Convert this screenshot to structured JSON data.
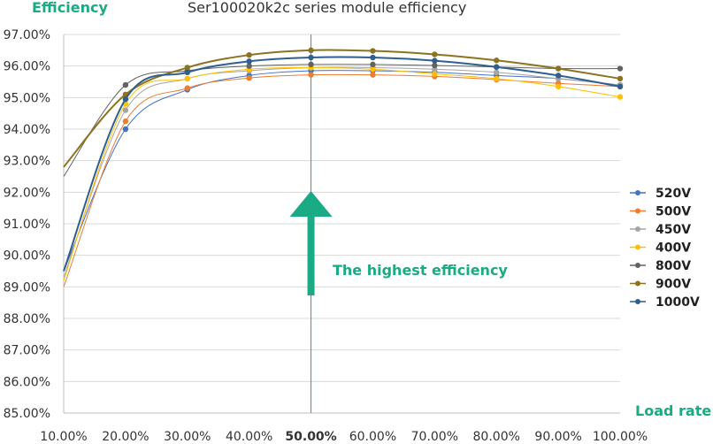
{
  "chart_data": {
    "type": "line",
    "title": "Ser100020k2c series module efficiency",
    "ylabel": "Efficiency",
    "xlabel": "Load rate",
    "x": [
      10,
      20,
      30,
      40,
      50,
      60,
      70,
      80,
      90,
      100
    ],
    "x_tick_labels": [
      "10.00%",
      "20.00%",
      "30.00%",
      "40.00%",
      "50.00%",
      "60.00%",
      "70.00%",
      "80.00%",
      "90.00%",
      "100.00%"
    ],
    "highlight_x_index": 4,
    "ylim": [
      85,
      97
    ],
    "y_tick_labels": [
      "85.00%",
      "86.00%",
      "87.00%",
      "88.00%",
      "89.00%",
      "90.00%",
      "91.00%",
      "92.00%",
      "93.00%",
      "94.00%",
      "95.00%",
      "96.00%",
      "97.00%"
    ],
    "grid": "horizontal",
    "legend_position": "right",
    "annotation": "The highest efficiency",
    "series": [
      {
        "name": "520V",
        "color": "#4472c4",
        "values": [
          89.5,
          94.0,
          95.25,
          95.7,
          95.85,
          95.85,
          95.8,
          95.7,
          95.6,
          95.4
        ]
      },
      {
        "name": "500V",
        "color": "#ed7d31",
        "values": [
          89.0,
          94.25,
          95.3,
          95.62,
          95.72,
          95.72,
          95.67,
          95.57,
          95.45,
          95.35
        ]
      },
      {
        "name": "450V",
        "color": "#a5a5a5",
        "values": [
          89.3,
          94.6,
          95.6,
          95.85,
          95.95,
          95.95,
          95.9,
          95.8,
          95.6,
          95.4
        ]
      },
      {
        "name": "400V",
        "color": "#ffc000",
        "values": [
          89.2,
          94.8,
          95.6,
          95.9,
          95.95,
          95.9,
          95.75,
          95.6,
          95.35,
          95.02
        ]
      },
      {
        "name": "800V",
        "color": "#636363",
        "values": [
          92.5,
          95.4,
          95.85,
          96.0,
          96.05,
          96.05,
          96.02,
          95.97,
          95.92,
          95.92
        ]
      },
      {
        "name": "900V",
        "color": "#8c7320",
        "values": [
          92.8,
          95.1,
          95.95,
          96.35,
          96.5,
          96.48,
          96.37,
          96.18,
          95.92,
          95.6
        ]
      },
      {
        "name": "1000V",
        "color": "#2f5f8f",
        "values": [
          89.5,
          94.95,
          95.8,
          96.15,
          96.27,
          96.27,
          96.17,
          95.97,
          95.7,
          95.35
        ]
      }
    ],
    "colors": {
      "accent": "#1aaa84",
      "grid": "#d9d9d9",
      "axis": "#bfbfbf"
    }
  }
}
